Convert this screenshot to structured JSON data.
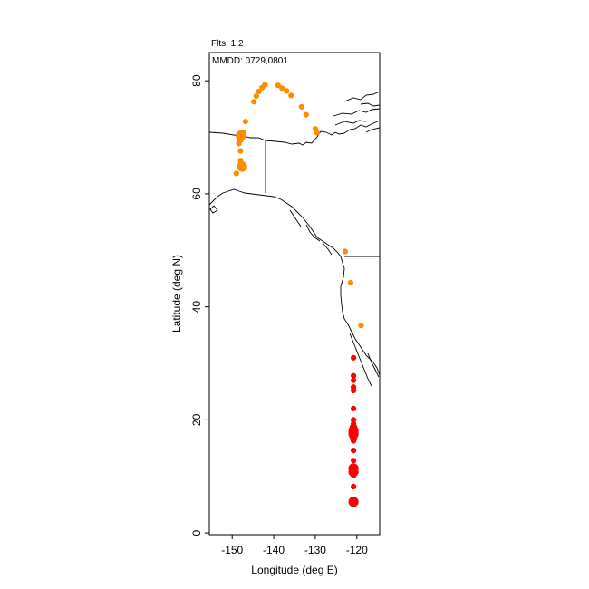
{
  "annotations": {
    "flights": "Flts: 1,2",
    "dates": "MMDD: 0729,0801"
  },
  "chart_data": {
    "type": "scatter",
    "title": "",
    "xlabel": "Longitude (deg E)",
    "ylabel": "Latitude (deg N)",
    "xlim": [
      -155.5,
      -114.5
    ],
    "ylim": [
      -0.3,
      85
    ],
    "x_ticks": [
      -150,
      -140,
      -130,
      -120
    ],
    "x_tick_labels": [
      "-150",
      "-140",
      "-130",
      "-120"
    ],
    "y_ticks": [
      0,
      20,
      40,
      60,
      80
    ],
    "y_tick_labels": [
      "0",
      "20",
      "40",
      "60",
      "80"
    ],
    "grid": false,
    "legend": "none",
    "series": [
      {
        "color": "#ff8c00",
        "points": [
          {
            "lon": -146.8,
            "lat": 72.8,
            "size": "small"
          },
          {
            "lon": -147.5,
            "lat": 70.7,
            "size": "medium"
          },
          {
            "lon": -147.9,
            "lat": 70.3,
            "size": "large"
          },
          {
            "lon": -148.1,
            "lat": 69.6,
            "size": "medium"
          },
          {
            "lon": -148.4,
            "lat": 68.9,
            "size": "small"
          },
          {
            "lon": -148.0,
            "lat": 67.6,
            "size": "small"
          },
          {
            "lon": -148.0,
            "lat": 65.9,
            "size": "small"
          },
          {
            "lon": -147.8,
            "lat": 65.2,
            "size": "medium"
          },
          {
            "lon": -147.6,
            "lat": 64.8,
            "size": "large"
          },
          {
            "lon": -149.0,
            "lat": 63.6,
            "size": "small"
          },
          {
            "lon": -144.8,
            "lat": 76.3,
            "size": "small"
          },
          {
            "lon": -144.2,
            "lat": 77.3,
            "size": "small"
          },
          {
            "lon": -143.6,
            "lat": 78.1,
            "size": "small"
          },
          {
            "lon": -142.8,
            "lat": 78.8,
            "size": "small"
          },
          {
            "lon": -142.1,
            "lat": 79.3,
            "size": "small"
          },
          {
            "lon": -139.0,
            "lat": 79.2,
            "size": "small"
          },
          {
            "lon": -138.0,
            "lat": 78.7,
            "size": "small"
          },
          {
            "lon": -136.9,
            "lat": 78.2,
            "size": "small"
          },
          {
            "lon": -135.8,
            "lat": 77.4,
            "size": "small"
          },
          {
            "lon": -133.3,
            "lat": 75.4,
            "size": "small"
          },
          {
            "lon": -132.2,
            "lat": 74.0,
            "size": "small"
          },
          {
            "lon": -130.0,
            "lat": 71.5,
            "size": "small"
          },
          {
            "lon": -129.6,
            "lat": 70.8,
            "size": "small"
          },
          {
            "lon": -122.8,
            "lat": 49.8,
            "size": "small"
          },
          {
            "lon": -121.5,
            "lat": 44.3,
            "size": "small"
          },
          {
            "lon": -119.0,
            "lat": 36.7,
            "size": "small"
          }
        ]
      },
      {
        "color": "#ff0000",
        "points": [
          {
            "lon": -120.8,
            "lat": 31.0,
            "size": "small"
          },
          {
            "lon": -120.8,
            "lat": 27.8,
            "size": "small"
          },
          {
            "lon": -120.8,
            "lat": 27.0,
            "size": "small"
          },
          {
            "lon": -120.8,
            "lat": 25.8,
            "size": "small"
          },
          {
            "lon": -120.8,
            "lat": 25.2,
            "size": "small"
          },
          {
            "lon": -120.8,
            "lat": 22.0,
            "size": "small"
          },
          {
            "lon": -120.8,
            "lat": 20.0,
            "size": "small"
          },
          {
            "lon": -120.8,
            "lat": 19.3,
            "size": "small"
          },
          {
            "lon": -120.8,
            "lat": 18.7,
            "size": "medium"
          },
          {
            "lon": -120.8,
            "lat": 18.1,
            "size": "large"
          },
          {
            "lon": -120.8,
            "lat": 17.5,
            "size": "large"
          },
          {
            "lon": -120.8,
            "lat": 16.8,
            "size": "medium"
          },
          {
            "lon": -120.8,
            "lat": 16.3,
            "size": "small"
          },
          {
            "lon": -120.8,
            "lat": 14.6,
            "size": "small"
          },
          {
            "lon": -120.8,
            "lat": 12.8,
            "size": "small"
          },
          {
            "lon": -120.8,
            "lat": 11.4,
            "size": "large"
          },
          {
            "lon": -120.8,
            "lat": 10.8,
            "size": "large"
          },
          {
            "lon": -120.8,
            "lat": 10.2,
            "size": "small"
          },
          {
            "lon": -120.8,
            "lat": 8.2,
            "size": "small"
          },
          {
            "lon": -120.8,
            "lat": 5.5,
            "size": "large"
          }
        ]
      }
    ]
  }
}
